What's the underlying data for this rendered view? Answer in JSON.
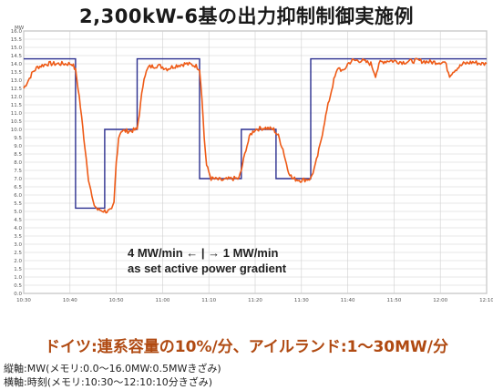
{
  "title": "2,300kW-6基の出力抑制制御実施例",
  "subtitle": "ドイツ:連系容量の10%/分、アイルランド:1〜30MW/分",
  "notes": [
    "縦軸:MW(メモリ:0.0〜16.0MW:0.5MWきざみ)",
    "横軸:時刻(メモリ:10:30〜12:10:10分きざみ)"
  ],
  "colors": {
    "setpoint": "#2b2f8f",
    "output": "#ee5a16",
    "grid": "#cfcfcf",
    "frame": "#9a9a9a"
  },
  "chart_data": {
    "type": "line",
    "title": "",
    "xlabel": "",
    "ylabel": "MW",
    "x_unit": "minutes after 10:30",
    "xlim": [
      0,
      100
    ],
    "ylim": [
      0,
      16
    ],
    "grid": true,
    "x_ticks": [
      "10:30",
      "10:40",
      "10:50",
      "11:00",
      "11:10",
      "11:20",
      "11:30",
      "11:40",
      "11:50",
      "12:00",
      "12:10"
    ],
    "y_ticks": [
      "0.0",
      "0.5",
      "1.0",
      "1.5",
      "2.0",
      "2.5",
      "3.0",
      "3.5",
      "4.0",
      "4.5",
      "5.0",
      "5.5",
      "6.0",
      "6.5",
      "7.0",
      "7.5",
      "8.0",
      "8.5",
      "9.0",
      "9.5",
      "10.0",
      "10.5",
      "11.0",
      "11.5",
      "12.0",
      "12.5",
      "13.0",
      "13.5",
      "14.0",
      "14.5",
      "15.0",
      "15.5",
      "16.0"
    ],
    "annotation": [
      "4 MW/min ← | → 1 MW/min",
      "as set active power gradient"
    ],
    "series": [
      {
        "style": "step",
        "points": [
          [
            0,
            14.3
          ],
          [
            11.2,
            14.3
          ],
          [
            11.2,
            5.2
          ],
          [
            17.5,
            5.2
          ],
          [
            17.5,
            10.0
          ],
          [
            24.5,
            10.0
          ],
          [
            24.5,
            14.3
          ],
          [
            38,
            14.3
          ],
          [
            38,
            7.0
          ],
          [
            47,
            7.0
          ],
          [
            47,
            10.0
          ],
          [
            54.5,
            10.0
          ],
          [
            54.5,
            7.0
          ],
          [
            62,
            7.0
          ],
          [
            62,
            14.3
          ],
          [
            100,
            14.3
          ]
        ]
      },
      {
        "style": "line",
        "points": [
          [
            0,
            12.5
          ],
          [
            2,
            13.5
          ],
          [
            3,
            13.8
          ],
          [
            5,
            14.0
          ],
          [
            8,
            14.0
          ],
          [
            10.5,
            14.0
          ],
          [
            11.2,
            13.6
          ],
          [
            12,
            12.0
          ],
          [
            13,
            9.5
          ],
          [
            14,
            7.0
          ],
          [
            15,
            5.5
          ],
          [
            16,
            5.1
          ],
          [
            18,
            5.0
          ],
          [
            19,
            5.05
          ],
          [
            19.5,
            5.5
          ],
          [
            20,
            8.0
          ],
          [
            20.5,
            9.5
          ],
          [
            21,
            9.9
          ],
          [
            23,
            9.9
          ],
          [
            24.5,
            10.0
          ],
          [
            25,
            11.0
          ],
          [
            26,
            13.2
          ],
          [
            27,
            13.8
          ],
          [
            29,
            13.9
          ],
          [
            31,
            13.7
          ],
          [
            33,
            13.9
          ],
          [
            35,
            14.0
          ],
          [
            37,
            13.9
          ],
          [
            38,
            13.7
          ],
          [
            38.5,
            12.0
          ],
          [
            39,
            9.5
          ],
          [
            39.5,
            7.8
          ],
          [
            40.5,
            7.0
          ],
          [
            43,
            6.9
          ],
          [
            45,
            7.0
          ],
          [
            46.5,
            7.0
          ],
          [
            47,
            7.5
          ],
          [
            48,
            8.8
          ],
          [
            49,
            9.7
          ],
          [
            50,
            10.0
          ],
          [
            52,
            10.1
          ],
          [
            54,
            10.0
          ],
          [
            54.5,
            9.8
          ],
          [
            55,
            9.6
          ],
          [
            56,
            8.8
          ],
          [
            57,
            7.6
          ],
          [
            58,
            7.0
          ],
          [
            60,
            6.9
          ],
          [
            62,
            7.0
          ],
          [
            63,
            7.8
          ],
          [
            64,
            9.0
          ],
          [
            65,
            10.5
          ],
          [
            66,
            11.8
          ],
          [
            67,
            13.0
          ],
          [
            68,
            13.8
          ],
          [
            69,
            13.5
          ],
          [
            70,
            14.0
          ],
          [
            71,
            14.2
          ],
          [
            73,
            14.2
          ],
          [
            75,
            14.0
          ],
          [
            76,
            13.3
          ],
          [
            77,
            14.1
          ],
          [
            79,
            14.2
          ],
          [
            82,
            14.1
          ],
          [
            85,
            14.2
          ],
          [
            88,
            14.1
          ],
          [
            91,
            14.1
          ],
          [
            92,
            13.3
          ],
          [
            93,
            13.6
          ],
          [
            95,
            14.0
          ],
          [
            97,
            14.1
          ],
          [
            99,
            14.0
          ],
          [
            100,
            14.0
          ]
        ]
      }
    ]
  }
}
